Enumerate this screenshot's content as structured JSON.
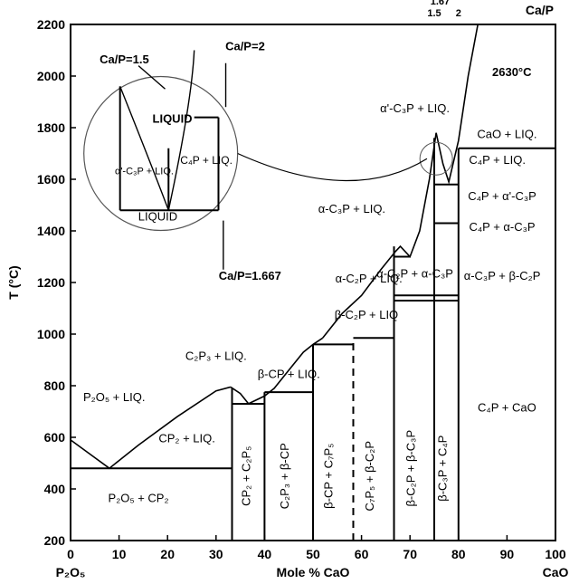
{
  "chart_data": {
    "type": "phase-diagram",
    "title": "",
    "xlabel": "Mole % CaO",
    "ylabel": "T (°C)",
    "x_left_end_label": "P₂O₅",
    "x_right_end_label": "CaO",
    "xlim": [
      0,
      100
    ],
    "ylim": [
      200,
      2200
    ],
    "xticks": [
      0,
      10,
      20,
      30,
      40,
      50,
      60,
      70,
      80,
      90,
      100
    ],
    "yticks": [
      200,
      400,
      600,
      800,
      1000,
      1200,
      1400,
      1600,
      1800,
      2000,
      2200
    ],
    "top_axis": {
      "label": "Ca/P",
      "ticks": [
        {
          "x": 75,
          "label": "1.5"
        },
        {
          "x": 76.2,
          "label": "1.67"
        },
        {
          "x": 80,
          "label": "2"
        }
      ]
    },
    "liquidus_curves": [
      {
        "name": "left",
        "points": [
          [
            0,
            590
          ],
          [
            4,
            535
          ],
          [
            8,
            480
          ],
          [
            14,
            570
          ],
          [
            22,
            680
          ],
          [
            30,
            780
          ],
          [
            33,
            795
          ]
        ]
      },
      {
        "name": "cp2-c2p3",
        "points": [
          [
            33,
            795
          ],
          [
            35,
            770
          ],
          [
            36.7,
            730
          ],
          [
            40,
            760
          ],
          [
            42,
            790
          ],
          [
            45,
            860
          ],
          [
            48,
            930
          ],
          [
            50,
            960
          ],
          [
            52,
            985
          ]
        ]
      },
      {
        "name": "c7p5-c2p",
        "points": [
          [
            52,
            985
          ],
          [
            56,
            1080
          ],
          [
            60,
            1150
          ],
          [
            64,
            1250
          ],
          [
            67,
            1320
          ],
          [
            68,
            1340
          ],
          [
            70,
            1300
          ],
          [
            72,
            1400
          ],
          [
            74,
            1600
          ],
          [
            75.4,
            1780
          ]
        ]
      },
      {
        "name": "right",
        "points": [
          [
            75.4,
            1780
          ],
          [
            76.8,
            1660
          ],
          [
            78,
            1590
          ],
          [
            80,
            1750
          ],
          [
            82,
            2000
          ],
          [
            84,
            2200
          ]
        ]
      }
    ],
    "horizontal_lines": [
      {
        "y": 480,
        "x": [
          0,
          33.3
        ]
      },
      {
        "y": 730,
        "x": [
          33.3,
          40
        ]
      },
      {
        "y": 775,
        "x": [
          40,
          50
        ]
      },
      {
        "y": 960,
        "x": [
          50,
          58.3
        ]
      },
      {
        "y": 985,
        "x": [
          58.3,
          66.7
        ]
      },
      {
        "y": 1130,
        "x": [
          66.7,
          75
        ]
      },
      {
        "y": 1150,
        "x": [
          66.7,
          75
        ]
      },
      {
        "y": 1130,
        "x": [
          75,
          80
        ]
      },
      {
        "y": 1150,
        "x": [
          75,
          80
        ]
      },
      {
        "y": 1300,
        "x": [
          66.7,
          70
        ]
      },
      {
        "y": 1430,
        "x": [
          75,
          80
        ]
      },
      {
        "y": 1580,
        "x": [
          75,
          80
        ]
      },
      {
        "y": 1720,
        "x": [
          80,
          100
        ]
      }
    ],
    "vertical_lines": [
      {
        "x": 33.3,
        "y": [
          200,
          790
        ]
      },
      {
        "x": 40,
        "y": [
          200,
          775
        ]
      },
      {
        "x": 50,
        "y": [
          200,
          960
        ]
      },
      {
        "x": 58.3,
        "y": [
          200,
          985
        ],
        "dashed": true
      },
      {
        "x": 66.7,
        "y": [
          200,
          1340
        ]
      },
      {
        "x": 75,
        "y": [
          200,
          1760
        ]
      },
      {
        "x": 80,
        "y": [
          200,
          1720
        ]
      }
    ],
    "inset": {
      "circle_label": "magnified region around Ca/P = 1.5–2",
      "labels": [
        "Ca/P=1.5",
        "Ca/P=2",
        "Ca/P=1.667",
        "LIQUID",
        "α'-C₃P + LIQ.",
        "C₄P + LIQ."
      ],
      "temperature_label": "2630°C"
    },
    "regions": [
      {
        "label": "LIQUID",
        "x": 18,
        "y": 1440
      },
      {
        "label": "P₂O₅ + LIQ.",
        "x": 9,
        "y": 740
      },
      {
        "label": "CP₂ + LIQ.",
        "x": 24,
        "y": 580
      },
      {
        "label": "P₂O₅ + CP₂",
        "x": 14,
        "y": 350
      },
      {
        "label": "C₂P₃ + LIQ.",
        "x": 30,
        "y": 900
      },
      {
        "label": "β-CP + LIQ.",
        "x": 45,
        "y": 830
      },
      {
        "label": "β-C₂P + LIQ",
        "x": 61,
        "y": 1060
      },
      {
        "label": "α-C₂P + LIQ.",
        "x": 61.5,
        "y": 1200
      },
      {
        "label": "α-C₂P + α-C₃P",
        "x": 71,
        "y": 1220
      },
      {
        "label": "α-C₃P + LIQ.",
        "x": 58,
        "y": 1470
      },
      {
        "label": "α'-C₃P + LIQ.",
        "x": 71,
        "y": 1860
      },
      {
        "label": "CaO + LIQ.",
        "x": 90,
        "y": 1760
      },
      {
        "label": "C₄P + LIQ.",
        "x": 88,
        "y": 1660
      },
      {
        "label": "C₄P + α'-C₃P",
        "x": 89,
        "y": 1520
      },
      {
        "label": "C₄P + α-C₃P",
        "x": 89,
        "y": 1400
      },
      {
        "label": "α-C₃P + β-C₂P",
        "x": 89,
        "y": 1210
      },
      {
        "label": "C₄P + CaO",
        "x": 90,
        "y": 700
      }
    ],
    "vertical_region_labels": [
      {
        "label": "CP₂ + C₂P₅",
        "x": 37,
        "y": 450
      },
      {
        "label": "C₂P₃ + β-CP",
        "x": 45,
        "y": 450
      },
      {
        "label": "β-CP + C₇P₅",
        "x": 54,
        "y": 450
      },
      {
        "label": "C₇P₅ + β-C₂P",
        "x": 62.5,
        "y": 450
      },
      {
        "label": "β-C₂P + β-C₃P",
        "x": 71,
        "y": 480
      },
      {
        "label": "β-C₃P + C₄P",
        "x": 77.5,
        "y": 480
      }
    ]
  }
}
